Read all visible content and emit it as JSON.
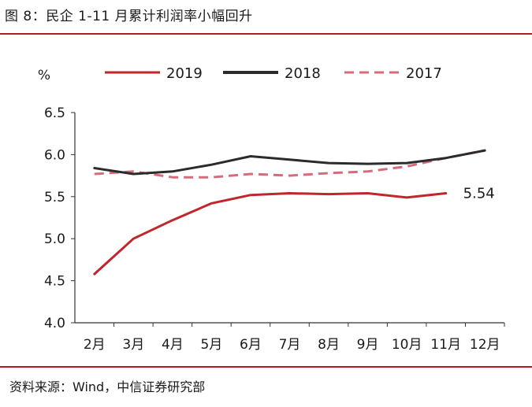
{
  "header": {
    "title": "图 8：民企 1-11 月累计利润率小幅回升"
  },
  "footer": {
    "source": "资料来源：Wind，中信证券研究部"
  },
  "chart_data": {
    "type": "line",
    "title": "图 8：民企 1-11 月累计利润率小幅回升",
    "xlabel": "",
    "ylabel": "%",
    "ylim": [
      4.0,
      6.5
    ],
    "yticks": [
      "4.0",
      "4.5",
      "5.0",
      "5.5",
      "6.0",
      "6.5"
    ],
    "categories": [
      "2月",
      "3月",
      "4月",
      "5月",
      "6月",
      "7月",
      "8月",
      "9月",
      "10月",
      "11月",
      "12月"
    ],
    "series": [
      {
        "name": "2019",
        "color": "#c0262c",
        "style": "solid",
        "values": [
          4.58,
          5.0,
          5.22,
          5.42,
          5.52,
          5.54,
          5.53,
          5.54,
          5.49,
          5.54,
          null
        ]
      },
      {
        "name": "2018",
        "color": "#2b2b2b",
        "style": "solid",
        "values": [
          5.84,
          5.77,
          5.8,
          5.88,
          5.98,
          5.94,
          5.9,
          5.89,
          5.9,
          5.96,
          6.05
        ]
      },
      {
        "name": "2017",
        "color": "#d66b7d",
        "style": "dashed",
        "values": [
          5.77,
          5.8,
          5.73,
          5.73,
          5.77,
          5.75,
          5.78,
          5.8,
          5.86,
          5.96,
          6.05
        ]
      }
    ],
    "annotations": [
      {
        "text": "5.54",
        "series": "2019",
        "category": "11月"
      }
    ],
    "legend": "top"
  }
}
